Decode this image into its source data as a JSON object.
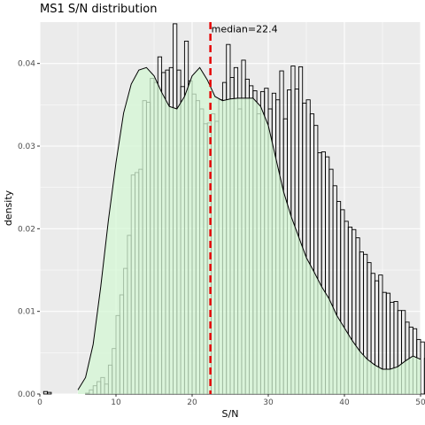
{
  "chart_data": {
    "type": "bar",
    "title": "MS1 S/N distribution",
    "xlabel": "S/N",
    "ylabel": "density",
    "xlim": [
      0,
      50
    ],
    "ylim": [
      0,
      0.045
    ],
    "x_ticks": [
      0,
      10,
      20,
      30,
      40,
      50
    ],
    "x_tick_labels": [
      "0",
      "10",
      "20",
      "30",
      "40",
      "50"
    ],
    "y_ticks": [
      0.0,
      0.01,
      0.02,
      0.03,
      0.04
    ],
    "y_tick_labels": [
      "0.00",
      "0.01",
      "0.02",
      "0.03",
      "0.04"
    ],
    "bin_width": 0.5,
    "bin_start": 0,
    "histogram": [
      0.0,
      0.0003,
      0.0002,
      0.0,
      0.0,
      0.0,
      0.0,
      0.0,
      0.0,
      0.0,
      0.0,
      0.0,
      0.0001,
      0.0005,
      0.001,
      0.0015,
      0.002,
      0.0012,
      0.0035,
      0.0055,
      0.0095,
      0.012,
      0.0152,
      0.0192,
      0.0265,
      0.0268,
      0.0272,
      0.0355,
      0.0353,
      0.0382,
      0.0377,
      0.0408,
      0.0389,
      0.0392,
      0.0395,
      0.0448,
      0.0392,
      0.0372,
      0.0427,
      0.0379,
      0.0363,
      0.0355,
      0.0345,
      0.0327,
      0.0328,
      0.0339,
      0.033,
      0.0356,
      0.0377,
      0.0423,
      0.0383,
      0.0395,
      0.0345,
      0.0404,
      0.0381,
      0.0373,
      0.0367,
      0.0339,
      0.0366,
      0.037,
      0.0345,
      0.0364,
      0.0356,
      0.0391,
      0.0333,
      0.0368,
      0.0397,
      0.0369,
      0.0396,
      0.0352,
      0.0356,
      0.0339,
      0.0325,
      0.0292,
      0.0293,
      0.0287,
      0.0272,
      0.0252,
      0.0233,
      0.0223,
      0.0209,
      0.0202,
      0.0199,
      0.0189,
      0.0172,
      0.0169,
      0.0159,
      0.0146,
      0.0137,
      0.0144,
      0.0123,
      0.0122,
      0.0111,
      0.0112,
      0.0101,
      0.0101,
      0.0087,
      0.0081,
      0.0079,
      0.0066,
      0.0063,
      0.0043,
      0.0057,
      0.0048,
      0.0053,
      0.0043,
      0.0033,
      0.0037,
      0.0028,
      0.0034,
      0.0036,
      0.0029,
      0.0026,
      0.0036,
      0.0029,
      0.0033,
      0.0037,
      0.0053,
      0.0053,
      0.0047,
      0.0062,
      0.0043
    ],
    "density_curve": {
      "x": [
        5,
        6,
        7,
        8,
        9,
        10,
        11,
        12,
        13,
        14,
        15,
        16,
        17,
        18,
        19,
        20,
        21,
        22,
        23,
        24,
        25,
        26,
        27,
        28,
        29,
        30,
        31,
        32,
        33,
        34,
        35,
        36,
        37,
        38,
        39,
        40,
        41,
        42,
        43,
        44,
        45,
        46,
        47,
        48,
        49,
        50
      ],
      "y": [
        0.0005,
        0.002,
        0.006,
        0.013,
        0.021,
        0.028,
        0.034,
        0.0375,
        0.0392,
        0.0395,
        0.0385,
        0.0365,
        0.0348,
        0.0345,
        0.036,
        0.0385,
        0.0395,
        0.038,
        0.036,
        0.0355,
        0.0357,
        0.0358,
        0.0358,
        0.0358,
        0.0348,
        0.0325,
        0.0285,
        0.0245,
        0.0215,
        0.019,
        0.0165,
        0.0148,
        0.013,
        0.0115,
        0.0095,
        0.008,
        0.0065,
        0.0052,
        0.0042,
        0.0035,
        0.003,
        0.003,
        0.0033,
        0.004,
        0.0046,
        0.0042
      ]
    },
    "annotations": [
      {
        "type": "vline",
        "x": 22.4,
        "color": "#e60000",
        "style": "dashed"
      },
      {
        "type": "text",
        "text": "median=22.4",
        "x": 22.4,
        "y": 0.0445
      }
    ],
    "fill_color": "#d4f7d4",
    "curve_color": "#000000",
    "bar_edge_color": "#000000",
    "panel_background": "#ebebeb",
    "grid": true,
    "legend": "none"
  }
}
